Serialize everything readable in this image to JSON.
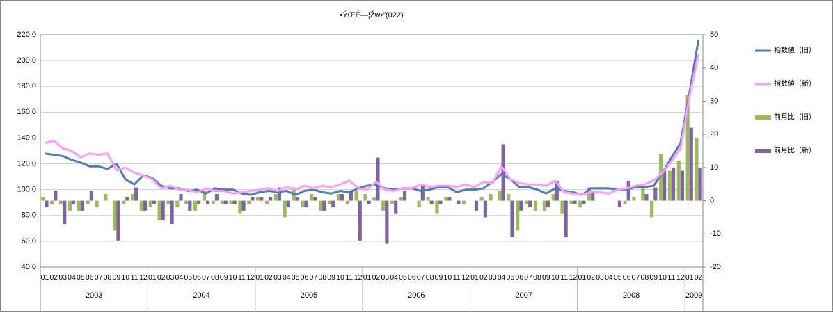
{
  "chart_data": {
    "type": "bar-line",
    "title": "•ÝŒÉ—¦Žw•”(022)",
    "categories": [
      "01",
      "02",
      "03",
      "04",
      "05",
      "06",
      "07",
      "08",
      "09",
      "10",
      "11",
      "12",
      "01",
      "02",
      "03",
      "04",
      "05",
      "06",
      "07",
      "08",
      "09",
      "10",
      "11",
      "12",
      "01",
      "02",
      "03",
      "04",
      "05",
      "06",
      "07",
      "08",
      "09",
      "10",
      "11",
      "12",
      "01",
      "02",
      "03",
      "04",
      "05",
      "06",
      "07",
      "08",
      "09",
      "10",
      "11",
      "12",
      "01",
      "02",
      "03",
      "04",
      "05",
      "06",
      "07",
      "08",
      "09",
      "10",
      "11",
      "12",
      "01",
      "02",
      "03",
      "04",
      "05",
      "06",
      "07",
      "08",
      "09",
      "10",
      "11",
      "12",
      "01",
      "02"
    ],
    "groups": [
      {
        "label": "2003",
        "span": 12
      },
      {
        "label": "2004",
        "span": 12
      },
      {
        "label": "2005",
        "span": 12
      },
      {
        "label": "2006",
        "span": 12
      },
      {
        "label": "2007",
        "span": 12
      },
      {
        "label": "2008",
        "span": 12
      },
      {
        "label": "2009",
        "span": 2
      }
    ],
    "ylim": [
      40,
      220
    ],
    "yticks": [
      {
        "value": 40,
        "label": "40.0"
      },
      {
        "value": 60,
        "label": "60.0"
      },
      {
        "value": 80,
        "label": "80.0"
      },
      {
        "value": 100,
        "label": "100.0"
      },
      {
        "value": 120,
        "label": "120.0"
      },
      {
        "value": 140,
        "label": "140.0"
      },
      {
        "value": 160,
        "label": "160.0"
      },
      {
        "value": 180,
        "label": "180.0"
      },
      {
        "value": 200,
        "label": "200.0"
      },
      {
        "value": 220,
        "label": "220.0"
      }
    ],
    "y2lim": [
      -20,
      50
    ],
    "y2ticks": [
      -20,
      -10,
      0,
      10,
      20,
      30,
      40,
      50
    ],
    "grid": true,
    "legend": "right",
    "series": [
      {
        "name": "前月比（旧）",
        "type": "bar",
        "axis": "y2",
        "color": "#9bbb59",
        "values": [
          1,
          -1,
          -1,
          -3,
          -3,
          -1,
          -2,
          2,
          -9,
          -1,
          2,
          -3,
          -2,
          -6,
          -1,
          -2,
          -1,
          -3,
          3,
          -1,
          -1,
          -1,
          -4,
          -1,
          1,
          -1,
          2,
          -5,
          4,
          -2,
          2,
          -3,
          -1,
          2,
          -1,
          3,
          2,
          1,
          -3,
          -1,
          1,
          0,
          -2,
          1,
          -4,
          1,
          0,
          -1,
          0,
          1,
          2,
          3,
          2,
          -9,
          -1,
          -3,
          -3,
          2,
          -4,
          -1,
          -2,
          4,
          0,
          0,
          0,
          -1,
          1,
          4,
          -5,
          14,
          9,
          12,
          32,
          19
        ]
      },
      {
        "name": "前月比（新）",
        "type": "bar",
        "axis": "y2",
        "color": "#8064a2",
        "values": [
          -2,
          3,
          -7,
          -1,
          -3,
          3,
          0,
          0,
          -12,
          1,
          4,
          -3,
          -1,
          -6,
          -7,
          2,
          -3,
          -1,
          -1,
          2,
          -1,
          -1,
          -3,
          1,
          1,
          1,
          4,
          -2,
          1,
          -2,
          1,
          -3,
          -2,
          2,
          3,
          -12,
          -1,
          13,
          -13,
          -4,
          3,
          0,
          5,
          -1,
          -1,
          1,
          -1,
          0,
          -3,
          -5,
          0,
          17,
          -11,
          -3,
          -2,
          0,
          -2,
          6,
          -11,
          -1,
          -1,
          3,
          0,
          0,
          -2,
          6,
          0,
          2,
          4,
          9,
          10,
          9,
          22,
          10
        ]
      },
      {
        "name": "指数値（旧）",
        "type": "line",
        "color": "#4a7ebb",
        "values": [
          128,
          127,
          126,
          123,
          121,
          118,
          118,
          116,
          120,
          108,
          104,
          111,
          109,
          103,
          101,
          101,
          99,
          100,
          97,
          101,
          100,
          100,
          97,
          96,
          98,
          99,
          98,
          99,
          96,
          99,
          100,
          98,
          97,
          99,
          98,
          101,
          103,
          104,
          101,
          100,
          101,
          101,
          99,
          100,
          102,
          102,
          98,
          100,
          100,
          101,
          106,
          112,
          108,
          102,
          102,
          100,
          97,
          101,
          99,
          98,
          96,
          101,
          101,
          101,
          100,
          100,
          102,
          102,
          103,
          113,
          125,
          136,
          175,
          216
        ]
      },
      {
        "name": "指数値（新）",
        "type": "line",
        "color": "#ff99ff",
        "values": [
          136,
          138,
          132,
          130,
          125,
          128,
          127,
          128,
          115,
          117,
          113,
          111,
          108,
          101,
          103,
          100,
          100,
          98,
          101,
          99,
          99,
          97,
          98,
          99,
          100,
          101,
          99,
          102,
          100,
          103,
          101,
          103,
          102,
          104,
          107,
          101,
          100,
          106,
          100,
          99,
          101,
          101,
          104,
          102,
          103,
          103,
          102,
          104,
          102,
          106,
          105,
          118,
          108,
          105,
          104,
          104,
          103,
          107,
          98,
          97,
          96,
          98,
          98,
          97,
          100,
          101,
          103,
          104,
          107,
          113,
          122,
          132,
          172,
          205
        ]
      }
    ]
  }
}
